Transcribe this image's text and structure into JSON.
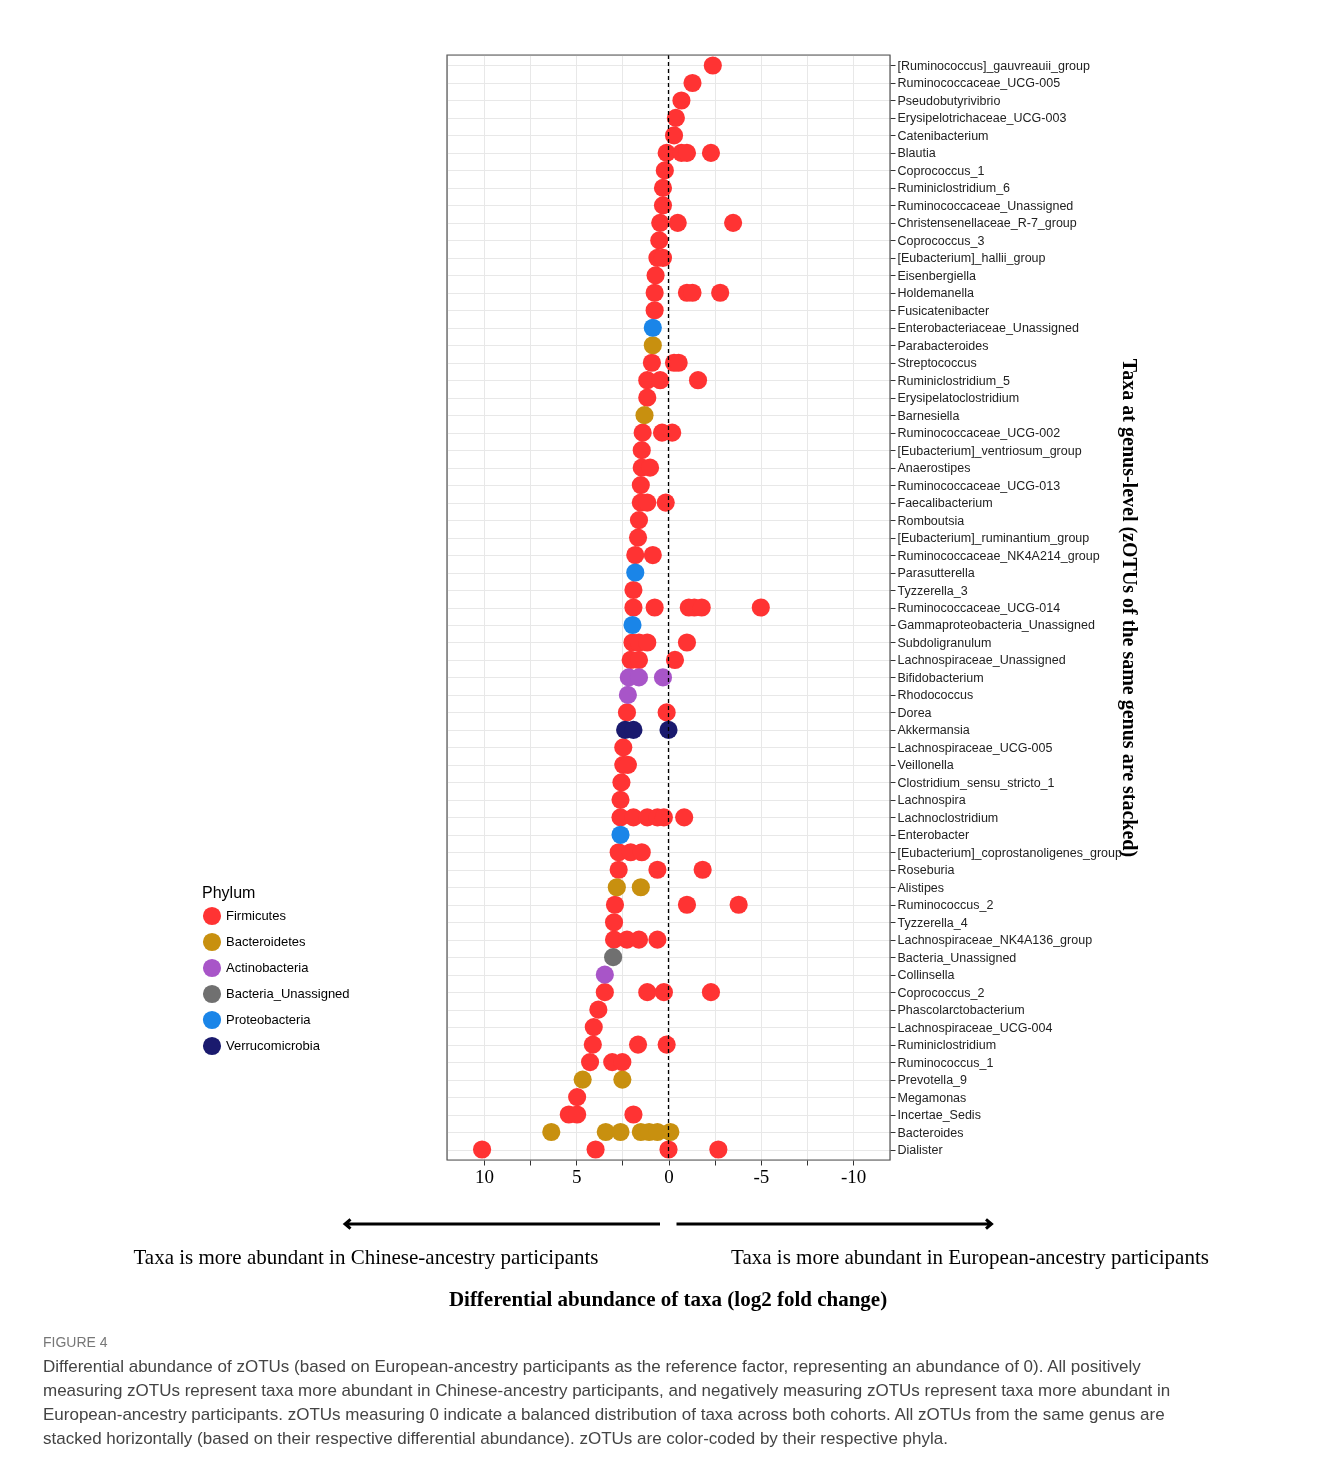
{
  "chart_data": {
    "type": "scatter",
    "orientation": "horizontal",
    "categories": [
      "[Ruminococcus]_gauvreauii_group",
      "Ruminococcaceae_UCG-005",
      "Pseudobutyrivibrio",
      "Erysipelotrichaceae_UCG-003",
      "Catenibacterium",
      "Blautia",
      "Coprococcus_1",
      "Ruminiclostridium_6",
      "Ruminococcaceae_Unassigned",
      "Christensenellaceae_R-7_group",
      "Coprococcus_3",
      "[Eubacterium]_hallii_group",
      "Eisenbergiella",
      "Holdemanella",
      "Fusicatenibacter",
      "Enterobacteriaceae_Unassigned",
      "Parabacteroides",
      "Streptococcus",
      "Ruminiclostridium_5",
      "Erysipelatoclostridium",
      "Barnesiella",
      "Ruminococcaceae_UCG-002",
      "[Eubacterium]_ventriosum_group",
      "Anaerostipes",
      "Ruminococcaceae_UCG-013",
      "Faecalibacterium",
      "Romboutsia",
      "[Eubacterium]_ruminantium_group",
      "Ruminococcaceae_NK4A214_group",
      "Parasutterella",
      "Tyzzerella_3",
      "Ruminococcaceae_UCG-014",
      "Gammaproteobacteria_Unassigned",
      "Subdoligranulum",
      "Lachnospiraceae_Unassigned",
      "Bifidobacterium",
      "Rhodococcus",
      "Dorea",
      "Akkermansia",
      "Lachnospiraceae_UCG-005",
      "Veillonella",
      "Clostridium_sensu_stricto_1",
      "Lachnospira",
      "Lachnoclostridium",
      "Enterobacter",
      "[Eubacterium]_coprostanoligenes_group",
      "Roseburia",
      "Alistipes",
      "Ruminococcus_2",
      "Tyzzerella_4",
      "Lachnospiraceae_NK4A136_group",
      "Bacteria_Unassigned",
      "Collinsella",
      "Coprococcus_2",
      "Phascolarctobacterium",
      "Lachnospiraceae_UCG-004",
      "Ruminiclostridium",
      "Ruminococcus_1",
      "Prevotella_9",
      "Megamonas",
      "Incertae_Sedis",
      "Bacteroides",
      "Dialister"
    ],
    "series": [
      {
        "name": "Firmicutes",
        "color": "#ff3333",
        "x": [
          "[Ruminococcus]_gauvreauii_group",
          "Ruminococcaceae_UCG-005",
          "Pseudobutyrivibrio",
          "Erysipelotrichaceae_UCG-003",
          "Catenibacterium",
          "Blautia",
          "Blautia",
          "Blautia",
          "Blautia",
          "Coprococcus_1",
          "Ruminiclostridium_6",
          "Ruminococcaceae_Unassigned",
          "Christensenellaceae_R-7_group",
          "Christensenellaceae_R-7_group",
          "Christensenellaceae_R-7_group",
          "Coprococcus_3",
          "[Eubacterium]_hallii_group",
          "[Eubacterium]_hallii_group",
          "Eisenbergiella",
          "Holdemanella",
          "Holdemanella",
          "Holdemanella",
          "Holdemanella",
          "Fusicatenibacter",
          "Streptococcus",
          "Streptococcus",
          "Streptococcus",
          "Ruminiclostridium_5",
          "Ruminiclostridium_5",
          "Ruminiclostridium_5",
          "Erysipelatoclostridium",
          "Ruminococcaceae_UCG-002",
          "Ruminococcaceae_UCG-002",
          "Ruminococcaceae_UCG-002",
          "[Eubacterium]_ventriosum_group",
          "Anaerostipes",
          "Anaerostipes",
          "Ruminococcaceae_UCG-013",
          "Faecalibacterium",
          "Faecalibacterium",
          "Faecalibacterium",
          "Romboutsia",
          "[Eubacterium]_ruminantium_group",
          "Ruminococcaceae_NK4A214_group",
          "Ruminococcaceae_NK4A214_group",
          "Tyzzerella_3",
          "Ruminococcaceae_UCG-014",
          "Ruminococcaceae_UCG-014",
          "Ruminococcaceae_UCG-014",
          "Ruminococcaceae_UCG-014",
          "Ruminococcaceae_UCG-014",
          "Ruminococcaceae_UCG-014",
          "Subdoligranulum",
          "Subdoligranulum",
          "Subdoligranulum",
          "Subdoligranulum",
          "Lachnospiraceae_Unassigned",
          "Lachnospiraceae_Unassigned",
          "Lachnospiraceae_Unassigned",
          "Dorea",
          "Dorea",
          "Lachnospiraceae_UCG-005",
          "Veillonella",
          "Veillonella",
          "Clostridium_sensu_stricto_1",
          "Lachnospira",
          "Lachnoclostridium",
          "Lachnoclostridium",
          "Lachnoclostridium",
          "Lachnoclostridium",
          "Lachnoclostridium",
          "Lachnoclostridium",
          "[Eubacterium]_coprostanoligenes_group",
          "[Eubacterium]_coprostanoligenes_group",
          "[Eubacterium]_coprostanoligenes_group",
          "Roseburia",
          "Roseburia",
          "Roseburia",
          "Ruminococcus_2",
          "Ruminococcus_2",
          "Ruminococcus_2",
          "Tyzzerella_4",
          "Lachnospiraceae_NK4A136_group",
          "Lachnospiraceae_NK4A136_group",
          "Lachnospiraceae_NK4A136_group",
          "Lachnospiraceae_NK4A136_group",
          "Coprococcus_2",
          "Coprococcus_2",
          "Coprococcus_2",
          "Coprococcus_2",
          "Phascolarctobacterium",
          "Lachnospiraceae_UCG-004",
          "Ruminiclostridium",
          "Ruminiclostridium",
          "Ruminiclostridium",
          "Ruminococcus_1",
          "Ruminococcus_1",
          "Ruminococcus_1",
          "Megamonas",
          "Incertae_Sedis",
          "Incertae_Sedis",
          "Incertae_Sedis",
          "Dialister",
          "Dialister",
          "Dialister",
          "Dialister"
        ],
        "values": [
          -2.4,
          -1.3,
          -0.7,
          -0.4,
          -0.3,
          0.1,
          -0.7,
          -1.0,
          -2.3,
          0.2,
          0.3,
          0.3,
          0.45,
          -0.5,
          -3.5,
          0.5,
          0.6,
          0.3,
          0.7,
          0.75,
          -1.0,
          -1.3,
          -2.8,
          0.75,
          0.9,
          -0.3,
          -0.55,
          1.15,
          0.45,
          -1.6,
          1.15,
          1.4,
          0.35,
          -0.2,
          1.45,
          1.45,
          1.0,
          1.5,
          1.5,
          1.15,
          0.15,
          1.6,
          1.65,
          1.8,
          0.85,
          1.9,
          1.9,
          0.75,
          -1.1,
          -1.4,
          -1.8,
          -5.0,
          1.95,
          1.6,
          1.15,
          -1.0,
          2.05,
          1.6,
          -0.35,
          2.25,
          0.1,
          2.45,
          2.45,
          2.2,
          2.55,
          2.6,
          2.6,
          1.9,
          1.15,
          0.6,
          0.25,
          -0.85,
          2.7,
          2.05,
          1.45,
          2.7,
          0.6,
          -1.85,
          2.9,
          -1.0,
          -3.8,
          2.95,
          2.95,
          2.25,
          1.6,
          0.6,
          3.45,
          1.15,
          0.25,
          -2.3,
          3.8,
          4.05,
          4.1,
          1.65,
          0.1,
          4.25,
          3.05,
          2.5,
          4.95,
          5.4,
          4.95,
          1.9,
          10.1,
          3.95,
          0.0,
          -2.7
        ]
      },
      {
        "name": "Bacteroidetes",
        "color": "#c8900f",
        "x": [
          "Parabacteroides",
          "Barnesiella",
          "Alistipes",
          "Alistipes",
          "Prevotella_9",
          "Prevotella_9",
          "Bacteroides",
          "Bacteroides",
          "Bacteroides",
          "Bacteroides",
          "Bacteroides",
          "Bacteroides",
          "Bacteroides",
          "Bacteroides",
          "Bacteroides"
        ],
        "values": [
          0.85,
          1.3,
          2.8,
          1.5,
          4.65,
          2.5,
          6.35,
          3.4,
          null,
          2.6,
          1.5,
          1.05,
          0.6,
          null,
          -0.1
        ]
      },
      {
        "name": "Actinobacteria",
        "color": "#a855c8",
        "x": [
          "Bifidobacterium",
          "Bifidobacterium",
          "Bifidobacterium",
          "Rhodococcus",
          "Collinsella"
        ],
        "values": [
          2.15,
          1.6,
          0.3,
          2.2,
          3.45
        ]
      },
      {
        "name": "Bacteria_Unassigned",
        "color": "#707070",
        "x": [
          "Bacteria_Unassigned"
        ],
        "values": [
          3.0
        ]
      },
      {
        "name": "Proteobacteria",
        "color": "#1a85e8",
        "x": [
          "Enterobacteriaceae_Unassigned",
          "Parasutterella",
          "Gammaproteobacteria_Unassigned",
          "Enterobacter"
        ],
        "values": [
          0.85,
          1.8,
          1.95,
          2.6
        ]
      },
      {
        "name": "Verrucomicrobia",
        "color": "#1a1a6e",
        "x": [
          "Akkermansia",
          "Akkermansia",
          "Akkermansia"
        ],
        "values": [
          2.35,
          1.9,
          0.0
        ]
      }
    ],
    "xlim": [
      12,
      -12
    ],
    "xticks": [
      10,
      {
        "value": 7.5,
        "label": null
      },
      5,
      {
        "value": 2.5,
        "label": null
      },
      0,
      {
        "value": -2.5,
        "label": null
      },
      -5,
      {
        "value": -7.5,
        "label": null
      },
      -10
    ],
    "ylabel": "Taxa at genus-level (zOTUs of the same genus are stacked)",
    "legend_title": "Phylum",
    "legend": "left",
    "grid": true,
    "marker": "circle",
    "ref_lines": [
      {
        "axis": "x",
        "value": 0,
        "line_style": "dashed",
        "color": "#000000"
      }
    ],
    "annotations": [
      "Taxa is more abundant in Chinese-ancestry participants",
      "Taxa is more abundant in European-ancestry participants",
      "Differential abundance of taxa (log2 fold change)",
      "FIGURE 4",
      "Differential abundance of zOTUs (based on European-ancestry participants as the reference factor, representing an abundance of 0). All positively measuring zOTUs represent taxa more abundant in Chinese-ancestry participants, and negatively measuring zOTUs represent taxa more abundant in European-ancestry participants. zOTUs measuring 0 indicate a balanced distribution of taxa across both cohorts. All zOTUs from the same genus are stacked horizontally (based on their respective differential abundance). zOTUs are color-coded by their respective phyla."
    ]
  }
}
